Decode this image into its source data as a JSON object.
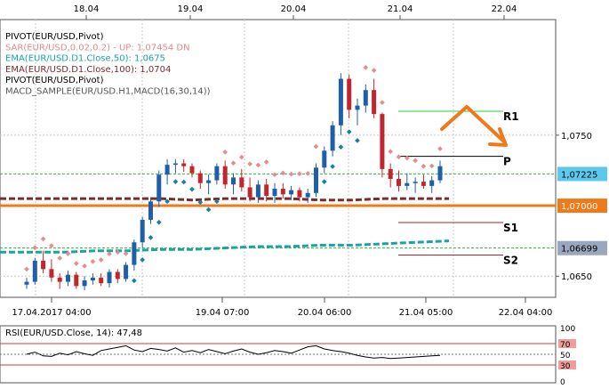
{
  "chart_data": {
    "type": "candlestick",
    "symbol": "EUR/USD",
    "top_axis_labels": [
      "18.04",
      "19.04",
      "20.04",
      "21.04",
      "22.04"
    ],
    "bottom_axis_labels": [
      "17.04.2017 04:00",
      "19.04 07:00",
      "20.04 06:00",
      "21.04 05:00",
      "22.04 04:00"
    ],
    "y_axis_ticks": [
      "1,0750",
      "1,0650"
    ],
    "ylim": [
      1.0635,
      1.0832
    ],
    "legend": [
      {
        "text": "PIVOT(EUR/USD,Pivot)",
        "color": "#000000"
      },
      {
        "text": "SAR(EUR/USD,0.02,0.2)  -  UP: 1,07454   DN",
        "color": "#e08a8a"
      },
      {
        "text": "EMA(EUR/USD.D1.Close,50): 1,0675",
        "color": "#1aa3a3"
      },
      {
        "text": "EMA(EUR/USD.D1.Close,100): 1,0704",
        "color": "#7a2b2b"
      },
      {
        "text": "PIVOT(EUR/USD,Pivot)",
        "color": "#000000"
      },
      {
        "text": "MACD_SAMPLE(EUR/USD.H1,MACD(16,30,14))",
        "color": "#555555"
      }
    ],
    "price_tags": [
      {
        "value": 1.07225,
        "label": "1,07225",
        "bg": "#5bc8ee",
        "fg": "#000000"
      },
      {
        "value": 1.07,
        "label": "1,07000",
        "bg": "#f07a1a",
        "fg": "#ffffff"
      },
      {
        "value": 1.06699,
        "label": "1,06699",
        "bg": "#9aa7c0",
        "fg": "#000000"
      }
    ],
    "pivot_levels": [
      {
        "name": "R1",
        "value": 1.0767,
        "color": "#2ecc40"
      },
      {
        "name": "P",
        "value": 1.0735,
        "color": "#000000"
      },
      {
        "name": "S1",
        "value": 1.0688,
        "color": "#b22222"
      },
      {
        "name": "S2",
        "value": 1.0665,
        "color": "#b22222"
      }
    ],
    "support_line": 1.07,
    "ema50": [
      1.0667,
      1.0667,
      1.0667,
      1.0668,
      1.0668,
      1.0669,
      1.0669,
      1.067,
      1.0671,
      1.0671,
      1.0672,
      1.0672,
      1.0673,
      1.0674,
      1.0675
    ],
    "ema100": [
      1.0705,
      1.0705,
      1.0705,
      1.0705,
      1.0705,
      1.0705,
      1.0704,
      1.0705,
      1.0705,
      1.0705,
      1.0704,
      1.0704,
      1.0705,
      1.0705,
      1.0705
    ],
    "candles": [
      [
        1.0644,
        1.0649,
        1.0641,
        1.0646
      ],
      [
        1.0646,
        1.0663,
        1.0644,
        1.0661
      ],
      [
        1.0661,
        1.0668,
        1.0652,
        1.0655
      ],
      [
        1.0655,
        1.0662,
        1.0646,
        1.0649
      ],
      [
        1.0649,
        1.0652,
        1.0641,
        1.0646
      ],
      [
        1.0646,
        1.0654,
        1.0643,
        1.0651
      ],
      [
        1.0651,
        1.0653,
        1.0641,
        1.0643
      ],
      [
        1.0643,
        1.065,
        1.064,
        1.0647
      ],
      [
        1.0647,
        1.0652,
        1.0644,
        1.0649
      ],
      [
        1.0649,
        1.0652,
        1.0643,
        1.0645
      ],
      [
        1.0645,
        1.0655,
        1.0642,
        1.0653
      ],
      [
        1.0653,
        1.0655,
        1.0645,
        1.0648
      ],
      [
        1.0648,
        1.066,
        1.0646,
        1.0658
      ],
      [
        1.0658,
        1.0676,
        1.0654,
        1.0674
      ],
      [
        1.0674,
        1.0692,
        1.067,
        1.069
      ],
      [
        1.069,
        1.0706,
        1.0687,
        1.0703
      ],
      [
        1.0703,
        1.0725,
        1.0699,
        1.0722
      ],
      [
        1.0722,
        1.0733,
        1.0715,
        1.0729
      ],
      [
        1.0729,
        1.0733,
        1.0723,
        1.073
      ],
      [
        1.073,
        1.0733,
        1.0724,
        1.0728
      ],
      [
        1.0728,
        1.073,
        1.072,
        1.0723
      ],
      [
        1.0723,
        1.0725,
        1.0712,
        1.0716
      ],
      [
        1.0716,
        1.0722,
        1.0708,
        1.0718
      ],
      [
        1.0718,
        1.073,
        1.0715,
        1.0728
      ],
      [
        1.0728,
        1.0732,
        1.0712,
        1.0715
      ],
      [
        1.0715,
        1.0723,
        1.0708,
        1.072
      ],
      [
        1.072,
        1.0726,
        1.071,
        1.0713
      ],
      [
        1.0713,
        1.072,
        1.0703,
        1.0706
      ],
      [
        1.0706,
        1.0718,
        1.0702,
        1.0715
      ],
      [
        1.0715,
        1.0719,
        1.0703,
        1.0707
      ],
      [
        1.0707,
        1.0716,
        1.0702,
        1.0712
      ],
      [
        1.0712,
        1.0716,
        1.0705,
        1.0708
      ],
      [
        1.0708,
        1.0714,
        1.0704,
        1.0711
      ],
      [
        1.0711,
        1.0713,
        1.0703,
        1.0706
      ],
      [
        1.0706,
        1.0712,
        1.0702,
        1.0709
      ],
      [
        1.0709,
        1.073,
        1.0706,
        1.0727
      ],
      [
        1.0727,
        1.0742,
        1.0723,
        1.0739
      ],
      [
        1.0739,
        1.076,
        1.0735,
        1.0757
      ],
      [
        1.0757,
        1.0794,
        1.075,
        1.079
      ],
      [
        1.079,
        1.0793,
        1.0762,
        1.0768
      ],
      [
        1.0768,
        1.0776,
        1.0757,
        1.0771
      ],
      [
        1.0771,
        1.0786,
        1.0766,
        1.0782
      ],
      [
        1.0782,
        1.079,
        1.0762,
        1.0765
      ],
      [
        1.0765,
        1.0766,
        1.072,
        1.0726
      ],
      [
        1.0726,
        1.073,
        1.0713,
        1.0719
      ],
      [
        1.0719,
        1.0725,
        1.071,
        1.0714
      ],
      [
        1.0714,
        1.0723,
        1.0711,
        1.0716
      ],
      [
        1.0716,
        1.072,
        1.0709,
        1.0717
      ],
      [
        1.0717,
        1.0722,
        1.0712,
        1.0714
      ],
      [
        1.0714,
        1.0721,
        1.0709,
        1.0718
      ],
      [
        1.0718,
        1.0732,
        1.0716,
        1.0728
      ]
    ],
    "sar_up_label": "UP",
    "rsi": {
      "label": "RSI(EUR/USD.Close, 14): 47,48",
      "value": 47.48,
      "levels": [
        70,
        30
      ],
      "axis_labels": [
        "100",
        "70",
        "50",
        "30",
        "0"
      ],
      "values": [
        50,
        54,
        47,
        46,
        52,
        49,
        55,
        51,
        48,
        57,
        60,
        63,
        66,
        58,
        55,
        61,
        59,
        56,
        62,
        54,
        57,
        53,
        59,
        55,
        51,
        56,
        60,
        54,
        50,
        53,
        57,
        55,
        52,
        58,
        64,
        66,
        60,
        57,
        55,
        52,
        48,
        45,
        43,
        44,
        42,
        43,
        44,
        45,
        46,
        47,
        48
      ]
    }
  }
}
